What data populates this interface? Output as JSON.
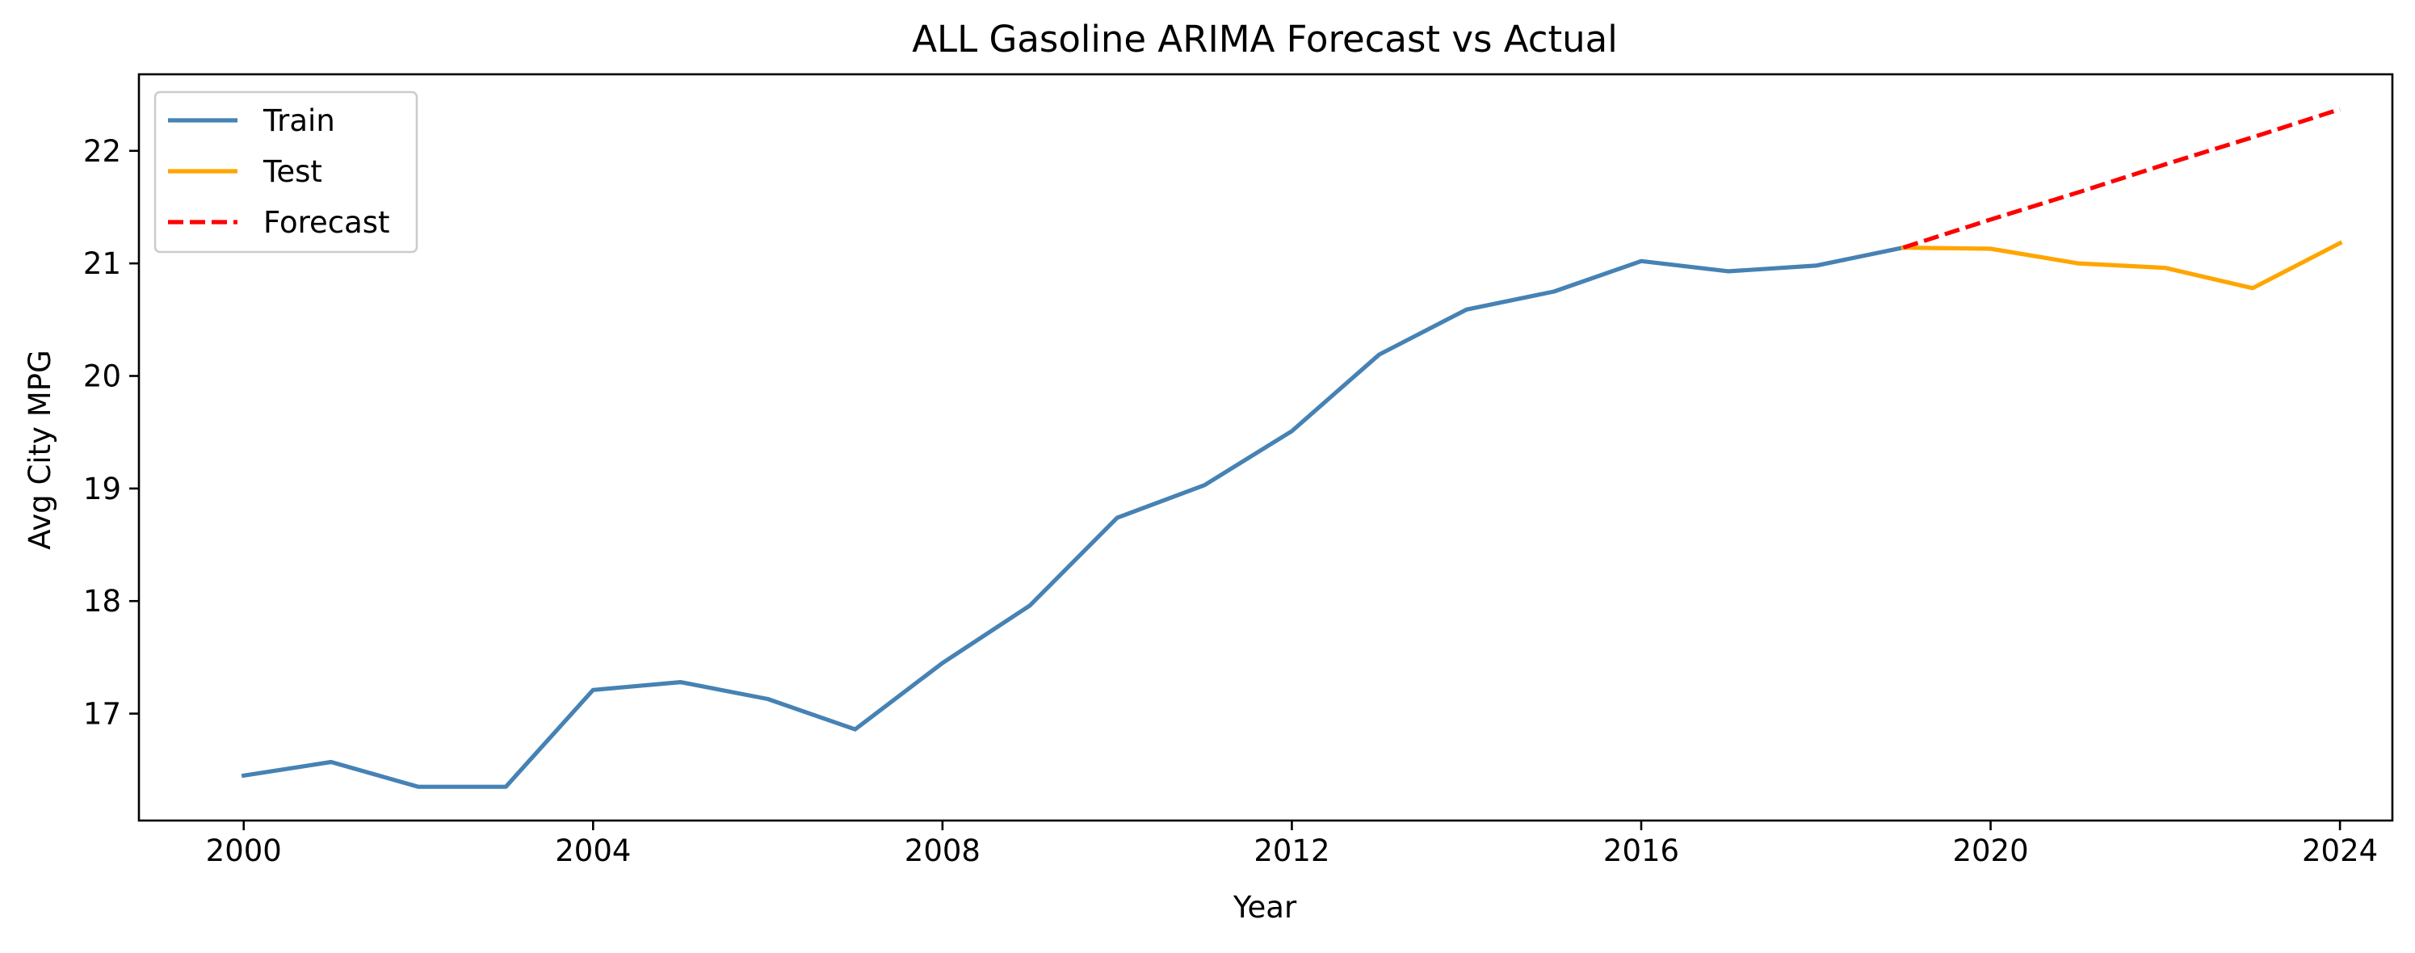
{
  "chart_data": {
    "type": "line",
    "title": "ALL Gasoline ARIMA Forecast vs Actual",
    "xlabel": "Year",
    "ylabel": "Avg City MPG",
    "xlim": [
      1998.8,
      2024.6
    ],
    "ylim": [
      16.05,
      22.68
    ],
    "xticks": [
      2000,
      2004,
      2008,
      2012,
      2016,
      2020,
      2024
    ],
    "yticks": [
      17,
      18,
      19,
      20,
      21,
      22
    ],
    "grid": false,
    "legend_position": "top-left",
    "series": [
      {
        "name": "Train",
        "color": "#4682b4",
        "style": "solid",
        "x": [
          2000,
          2001,
          2002,
          2003,
          2004,
          2005,
          2006,
          2007,
          2008,
          2009,
          2010,
          2011,
          2012,
          2013,
          2014,
          2015,
          2016,
          2017,
          2018,
          2019
        ],
        "y": [
          16.45,
          16.57,
          16.35,
          16.35,
          17.21,
          17.28,
          17.13,
          16.86,
          17.45,
          17.96,
          18.74,
          19.03,
          19.51,
          20.19,
          20.59,
          20.75,
          21.02,
          20.93,
          20.98,
          21.14
        ]
      },
      {
        "name": "Test",
        "color": "#ffa500",
        "style": "solid",
        "x": [
          2019,
          2020,
          2021,
          2022,
          2023,
          2024
        ],
        "y": [
          21.14,
          21.13,
          21.0,
          20.96,
          20.78,
          21.18
        ]
      },
      {
        "name": "Forecast",
        "color": "#ff0000",
        "style": "dashed",
        "x": [
          2019,
          2020,
          2021,
          2022,
          2023,
          2024
        ],
        "y": [
          21.14,
          21.39,
          21.63,
          21.88,
          22.12,
          22.37
        ]
      }
    ]
  }
}
